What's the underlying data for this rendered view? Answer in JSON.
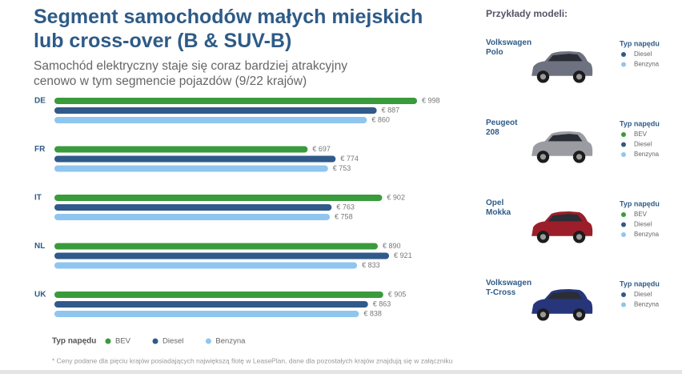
{
  "chart_data": {
    "type": "bar",
    "orientation": "horizontal",
    "title": "Segment samochodów małych miejskich lub cross-over (B & SUV-B)",
    "subtitle": "Samochód elektryczny staje się coraz bardziej atrakcyjny cenowo w tym segmencie pojazdów (9/22 krajów)",
    "categories": [
      "DE",
      "FR",
      "IT",
      "NL",
      "UK"
    ],
    "series": [
      {
        "name": "BEV",
        "color": "#3a9b3c",
        "values": [
          998,
          697,
          902,
          890,
          905
        ],
        "value_labels": [
          "€ 998",
          "€ 697",
          "€ 902",
          "€ 890",
          "€ 905"
        ]
      },
      {
        "name": "Diesel",
        "color": "#2f5a8a",
        "values": [
          887,
          774,
          763,
          921,
          863
        ],
        "value_labels": [
          "€ 887",
          "€ 774",
          "€ 763",
          "€ 921",
          "€ 863"
        ]
      },
      {
        "name": "Benzyna",
        "color": "#8fc6ef",
        "values": [
          860,
          753,
          758,
          833,
          838
        ],
        "value_labels": [
          "€ 860",
          "€ 753",
          "€ 758",
          "€ 833",
          "€ 838"
        ]
      }
    ],
    "legend_title": "Typ napędu",
    "footnote": "* Ceny podane dla pięciu krajów posiadających największą flotę w LeasePlan, dane dla pozostałych krajów znajdują się w załączniku"
  },
  "side_panel": {
    "title": "Przykłady modeli:",
    "models": [
      {
        "name": "Volkswagen Polo",
        "legend_title": "Typ napędu",
        "types": [
          "Diesel",
          "Benzyna"
        ]
      },
      {
        "name": "Peugeot 208",
        "legend_title": "Typ napędu",
        "types": [
          "BEV",
          "Diesel",
          "Benzyna"
        ]
      },
      {
        "name": "Opel Mokka",
        "legend_title": "Typ napędu",
        "types": [
          "BEV",
          "Diesel",
          "Benzyna"
        ]
      },
      {
        "name": "Volkswagen T-Cross",
        "legend_title": "Typ napędu",
        "types": [
          "Diesel",
          "Benzyna"
        ]
      }
    ]
  }
}
